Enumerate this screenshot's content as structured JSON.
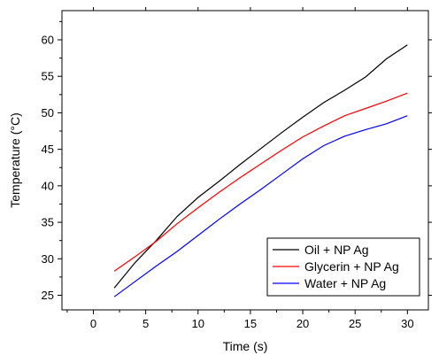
{
  "chart_data": {
    "type": "line",
    "xlabel": "Time (s)",
    "ylabel": "Temperature (°C)",
    "xlim": [
      -3,
      32
    ],
    "ylim": [
      23,
      64
    ],
    "x_ticks": [
      0,
      5,
      10,
      15,
      20,
      25,
      30
    ],
    "y_ticks": [
      25,
      30,
      35,
      40,
      45,
      50,
      55,
      60
    ],
    "grid": false,
    "legend_position": "bottom-right",
    "series": [
      {
        "name": "Oil + NP Ag",
        "color": "#000000",
        "x": [
          2,
          4,
          6,
          8,
          10,
          12,
          14,
          16,
          18,
          20,
          22,
          24,
          26,
          28,
          30
        ],
        "y": [
          26.0,
          29.5,
          32.5,
          35.8,
          38.4,
          40.6,
          42.9,
          45.1,
          47.3,
          49.4,
          51.4,
          53.1,
          54.9,
          57.4,
          59.3
        ]
      },
      {
        "name": "Glycerin + NP Ag",
        "color": "#ff0000",
        "x": [
          2,
          4,
          6,
          8,
          10,
          12,
          14,
          16,
          18,
          20,
          22,
          24,
          26,
          28,
          30
        ],
        "y": [
          28.3,
          30.3,
          32.4,
          34.8,
          37.0,
          39.1,
          41.1,
          43.0,
          44.9,
          46.7,
          48.2,
          49.6,
          50.6,
          51.6,
          52.7
        ]
      },
      {
        "name": "Water + NP Ag",
        "color": "#0000ff",
        "x": [
          2,
          4,
          6,
          8,
          10,
          12,
          14,
          16,
          18,
          20,
          22,
          24,
          26,
          28,
          30
        ],
        "y": [
          24.8,
          26.9,
          29.0,
          31.0,
          33.2,
          35.4,
          37.5,
          39.5,
          41.6,
          43.7,
          45.5,
          46.8,
          47.7,
          48.5,
          49.6
        ]
      }
    ]
  }
}
